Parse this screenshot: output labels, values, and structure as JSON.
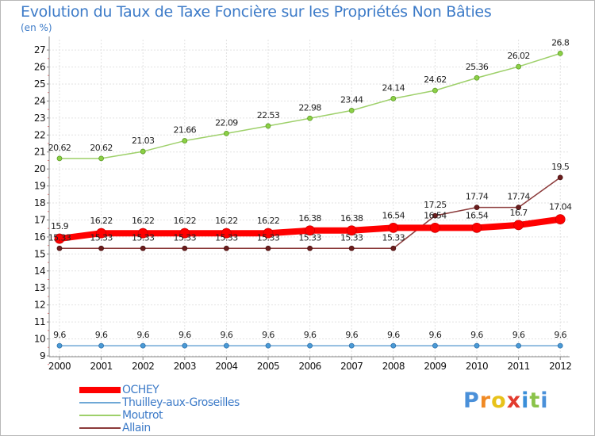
{
  "title": "Evolution du Taux de Taxe Foncière sur les Propriétés Non Bâties",
  "unit": "(en %)",
  "logo": "Proxiti",
  "chart_data": {
    "type": "line",
    "title": "Evolution du Taux de Taxe Foncière sur les Propriétés Non Bâties",
    "ylabel": "(en %)",
    "xlabel": "",
    "x": [
      "2000",
      "2001",
      "2002",
      "2003",
      "2004",
      "2005",
      "2006",
      "2007",
      "2008",
      "2009",
      "2010",
      "2011",
      "2012"
    ],
    "ylim": [
      9,
      27
    ],
    "yticks": [
      "9",
      "10",
      "11",
      "12",
      "13",
      "14",
      "15",
      "16",
      "17",
      "18",
      "19",
      "20",
      "21",
      "22",
      "23",
      "24",
      "25",
      "26",
      "27"
    ],
    "grid": true,
    "legend_position": "bottom-left",
    "series": [
      {
        "name": "OCHEY",
        "color": "#ff0000",
        "values": [
          15.9,
          16.22,
          16.22,
          16.22,
          16.22,
          16.22,
          16.38,
          16.38,
          16.54,
          16.54,
          16.54,
          16.7,
          17.04
        ],
        "labels": [
          "15.9",
          "16.22",
          "16.22",
          "16.22",
          "16.22",
          "16.22",
          "16.38",
          "16.38",
          "16.54",
          "16.54",
          "16.54",
          "16.7",
          "17.04"
        ]
      },
      {
        "name": "Thuilley-aux-Groseilles",
        "color": "#6fa8d6",
        "values": [
          9.6,
          9.6,
          9.6,
          9.6,
          9.6,
          9.6,
          9.6,
          9.6,
          9.6,
          9.6,
          9.6,
          9.6,
          9.6
        ],
        "labels": [
          "9.6",
          "9.6",
          "9.6",
          "9.6",
          "9.6",
          "9.6",
          "9.6",
          "9.6",
          "9.6",
          "9.6",
          "9.6",
          "9.6",
          "9.6"
        ]
      },
      {
        "name": "Moutrot",
        "color": "#9ed06a",
        "values": [
          20.62,
          20.62,
          21.03,
          21.66,
          22.09,
          22.53,
          22.98,
          23.44,
          24.14,
          24.62,
          25.36,
          26.02,
          26.8
        ],
        "labels": [
          "20.62",
          "20.62",
          "21.03",
          "21.66",
          "22.09",
          "22.53",
          "22.98",
          "23.44",
          "24.14",
          "24.62",
          "25.36",
          "26.02",
          "26.8"
        ]
      },
      {
        "name": "Allain",
        "color": "#8b3a3a",
        "values": [
          15.33,
          15.33,
          15.33,
          15.33,
          15.33,
          15.33,
          15.33,
          15.33,
          15.33,
          17.25,
          17.74,
          17.74,
          19.5
        ],
        "labels": [
          "15.33",
          "15.33",
          "15.33",
          "15.33",
          "15.33",
          "15.33",
          "15.33",
          "15.33",
          "15.33",
          "17.25",
          "17.74",
          "17.74",
          "19.5"
        ]
      }
    ]
  }
}
